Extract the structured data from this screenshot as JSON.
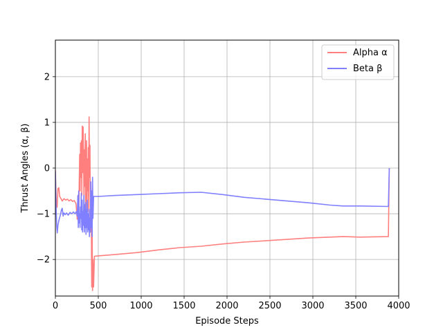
{
  "chart_data": {
    "type": "line",
    "title": "",
    "xlabel": "Episode Steps",
    "ylabel": "Thrust Angles (α, β)",
    "xlim": [
      0,
      4000
    ],
    "ylim": [
      -2.8,
      2.8
    ],
    "x_ticks": [
      0,
      500,
      1000,
      1500,
      2000,
      2500,
      3000,
      3500,
      4000
    ],
    "y_ticks": [
      -2,
      -1,
      0,
      1,
      2
    ],
    "x_tick_labels": [
      "0",
      "500",
      "1000",
      "1500",
      "2000",
      "2500",
      "3000",
      "3500",
      "4000"
    ],
    "y_tick_labels": [
      "−2",
      "−1",
      "0",
      "1",
      "2"
    ],
    "grid": true,
    "legend_position": "top-right",
    "series": [
      {
        "name": "Alpha α",
        "color": "#ff7f7f",
        "points": [
          [
            0,
            -0.05
          ],
          [
            10,
            -0.7
          ],
          [
            20,
            -0.86
          ],
          [
            30,
            -0.45
          ],
          [
            40,
            -0.43
          ],
          [
            50,
            -0.62
          ],
          [
            60,
            -0.65
          ],
          [
            80,
            -0.72
          ],
          [
            100,
            -0.67
          ],
          [
            120,
            -0.7
          ],
          [
            140,
            -0.68
          ],
          [
            160,
            -0.72
          ],
          [
            180,
            -0.69
          ],
          [
            200,
            -0.73
          ],
          [
            220,
            -0.71
          ],
          [
            240,
            -0.78
          ],
          [
            255,
            -1.12
          ],
          [
            265,
            -0.9
          ],
          [
            272,
            -1.05
          ],
          [
            278,
            -0.3
          ],
          [
            283,
            0.3
          ],
          [
            288,
            -0.5
          ],
          [
            293,
            0.55
          ],
          [
            298,
            -0.2
          ],
          [
            303,
            0.6
          ],
          [
            308,
            -0.6
          ],
          [
            313,
            0.92
          ],
          [
            318,
            -0.1
          ],
          [
            323,
            0.9
          ],
          [
            328,
            0.25
          ],
          [
            333,
            -0.75
          ],
          [
            338,
            0.4
          ],
          [
            343,
            -0.4
          ],
          [
            348,
            0.75
          ],
          [
            353,
            -0.9
          ],
          [
            358,
            0.15
          ],
          [
            363,
            0.6
          ],
          [
            368,
            -1.15
          ],
          [
            373,
            0.2
          ],
          [
            378,
            -0.5
          ],
          [
            383,
            0.45
          ],
          [
            388,
            -0.95
          ],
          [
            393,
            1.12
          ],
          [
            398,
            -0.2
          ],
          [
            403,
            0.5
          ],
          [
            408,
            -1.35
          ],
          [
            413,
            -0.3
          ],
          [
            418,
            -0.8
          ],
          [
            423,
            -2.6
          ],
          [
            428,
            -1.3
          ],
          [
            433,
            -2.68
          ],
          [
            438,
            -2.0
          ],
          [
            445,
            -2.6
          ],
          [
            455,
            -1.93
          ],
          [
            500,
            -1.92
          ],
          [
            700,
            -1.89
          ],
          [
            950,
            -1.85
          ],
          [
            1200,
            -1.79
          ],
          [
            1450,
            -1.74
          ],
          [
            1700,
            -1.71
          ],
          [
            1950,
            -1.66
          ],
          [
            2200,
            -1.62
          ],
          [
            2450,
            -1.59
          ],
          [
            2700,
            -1.56
          ],
          [
            2950,
            -1.53
          ],
          [
            3200,
            -1.51
          ],
          [
            3350,
            -1.5
          ],
          [
            3550,
            -1.51
          ],
          [
            3880,
            -1.5
          ],
          [
            3890,
            0.0
          ]
        ]
      },
      {
        "name": "Beta β",
        "color": "#7f7fff",
        "points": [
          [
            0,
            -0.08
          ],
          [
            8,
            -0.85
          ],
          [
            15,
            -1.25
          ],
          [
            22,
            -1.42
          ],
          [
            30,
            -1.25
          ],
          [
            40,
            -1.15
          ],
          [
            50,
            -1.08
          ],
          [
            60,
            -1.02
          ],
          [
            70,
            -0.92
          ],
          [
            80,
            -0.88
          ],
          [
            90,
            -1.05
          ],
          [
            100,
            -0.98
          ],
          [
            115,
            -1.02
          ],
          [
            130,
            -0.98
          ],
          [
            150,
            -1.03
          ],
          [
            170,
            -0.97
          ],
          [
            190,
            -1.0
          ],
          [
            210,
            -0.96
          ],
          [
            230,
            -1.0
          ],
          [
            245,
            -0.95
          ],
          [
            255,
            -1.05
          ],
          [
            262,
            -0.6
          ],
          [
            267,
            -1.3
          ],
          [
            272,
            -0.5
          ],
          [
            277,
            -1.2
          ],
          [
            282,
            -1.0
          ],
          [
            287,
            -1.3
          ],
          [
            292,
            -0.85
          ],
          [
            297,
            -1.1
          ],
          [
            302,
            -0.55
          ],
          [
            307,
            -1.35
          ],
          [
            312,
            -0.7
          ],
          [
            317,
            -1.4
          ],
          [
            322,
            -0.95
          ],
          [
            327,
            -1.25
          ],
          [
            332,
            -0.6
          ],
          [
            337,
            -1.4
          ],
          [
            342,
            -0.8
          ],
          [
            347,
            -1.3
          ],
          [
            352,
            -0.75
          ],
          [
            357,
            -1.45
          ],
          [
            362,
            -0.9
          ],
          [
            367,
            -1.3
          ],
          [
            372,
            -0.7
          ],
          [
            377,
            -1.4
          ],
          [
            382,
            -1.0
          ],
          [
            387,
            -1.35
          ],
          [
            392,
            -0.9
          ],
          [
            397,
            -1.5
          ],
          [
            402,
            -1.1
          ],
          [
            407,
            -1.4
          ],
          [
            412,
            -0.3
          ],
          [
            417,
            -1.3
          ],
          [
            422,
            -0.5
          ],
          [
            428,
            -1.5
          ],
          [
            433,
            -0.2
          ],
          [
            438,
            -1.1
          ],
          [
            445,
            -0.62
          ],
          [
            500,
            -0.62
          ],
          [
            700,
            -0.6
          ],
          [
            950,
            -0.58
          ],
          [
            1200,
            -0.56
          ],
          [
            1450,
            -0.54
          ],
          [
            1700,
            -0.53
          ],
          [
            1950,
            -0.58
          ],
          [
            2200,
            -0.64
          ],
          [
            2450,
            -0.68
          ],
          [
            2700,
            -0.72
          ],
          [
            2950,
            -0.76
          ],
          [
            3200,
            -0.81
          ],
          [
            3350,
            -0.83
          ],
          [
            3550,
            -0.83
          ],
          [
            3880,
            -0.84
          ],
          [
            3890,
            0.0
          ]
        ]
      }
    ]
  }
}
